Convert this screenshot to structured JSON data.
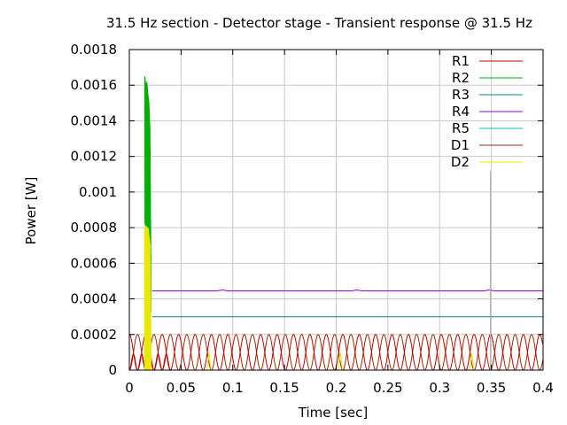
{
  "chart_data": {
    "type": "line",
    "title": "31.5 Hz section - Detector stage - Transient response @ 31.5 Hz",
    "xlabel": "Time [sec]",
    "ylabel": "Power [W]",
    "xlim": [
      0,
      0.4
    ],
    "ylim": [
      0,
      0.0018
    ],
    "x_ticks": [
      0,
      0.05,
      0.1,
      0.15,
      0.2,
      0.25,
      0.3,
      0.35,
      0.4
    ],
    "x_tick_labels": [
      "0",
      "0.05",
      "0.1",
      "0.15",
      "0.2",
      "0.25",
      "0.3",
      "0.35",
      "0.4"
    ],
    "y_ticks": [
      0,
      0.0002,
      0.0004,
      0.0006,
      0.0008,
      0.001,
      0.0012,
      0.0014,
      0.0016,
      0.0018
    ],
    "y_tick_labels": [
      "0",
      "0.0002",
      "0.0004",
      "0.0006",
      "0.0008",
      "0.001",
      "0.0012",
      "0.0014",
      "0.0016",
      "0.0018"
    ],
    "grid": true,
    "legend": "top-right",
    "series": [
      {
        "name": "R1",
        "color": "#c00000",
        "description_x": [
          0,
          0.4
        ],
        "x": [
          0,
          0.004,
          0.008,
          0.012,
          0.016,
          0.02,
          0.024,
          0.028,
          0.032,
          0.036,
          0.04
        ],
        "y": [
          0,
          5e-05,
          8e-05,
          5e-05,
          1e-05,
          2e-05,
          0.0001,
          0.00018,
          0.0002,
          0.00012,
          0.0
        ]
      },
      {
        "name": "R2",
        "color": "#00b000",
        "x": [
          0.015,
          0.016,
          0.017,
          0.018,
          0.019,
          0.02,
          0.021
        ],
        "y": [
          0.00165,
          0.0016,
          0.00162,
          0.00155,
          0.0015,
          0.00135,
          0.00055
        ]
      },
      {
        "name": "R3",
        "color": "#008b8b",
        "x": [
          0.022,
          0.4
        ],
        "y": [
          0.0003,
          0.0003
        ]
      },
      {
        "name": "R4",
        "color": "#9400d3",
        "x": [
          0.022,
          0.085,
          0.09,
          0.095,
          0.215,
          0.22,
          0.225,
          0.343,
          0.348,
          0.353,
          0.4
        ],
        "y": [
          0.000445,
          0.000445,
          0.00045,
          0.000445,
          0.000445,
          0.00045,
          0.000445,
          0.000445,
          0.00045,
          0.000445,
          0.000445
        ]
      },
      {
        "name": "R5",
        "color": "#00c0c0",
        "x": [
          0.349,
          0.349
        ],
        "y": [
          0.0,
          0.00112
        ]
      },
      {
        "name": "D1",
        "color": "#a02800",
        "x": [
          0,
          0.4
        ],
        "y": [
          0.0002,
          0.0002
        ]
      },
      {
        "name": "D2",
        "color": "#e8e800",
        "x": [
          0.015,
          0.016,
          0.017,
          0.018,
          0.019,
          0.02,
          0.021
        ],
        "y": [
          0.0008,
          0.00081,
          0.00079,
          0.0008,
          0.00075,
          0.0007,
          0.0
        ]
      }
    ]
  }
}
